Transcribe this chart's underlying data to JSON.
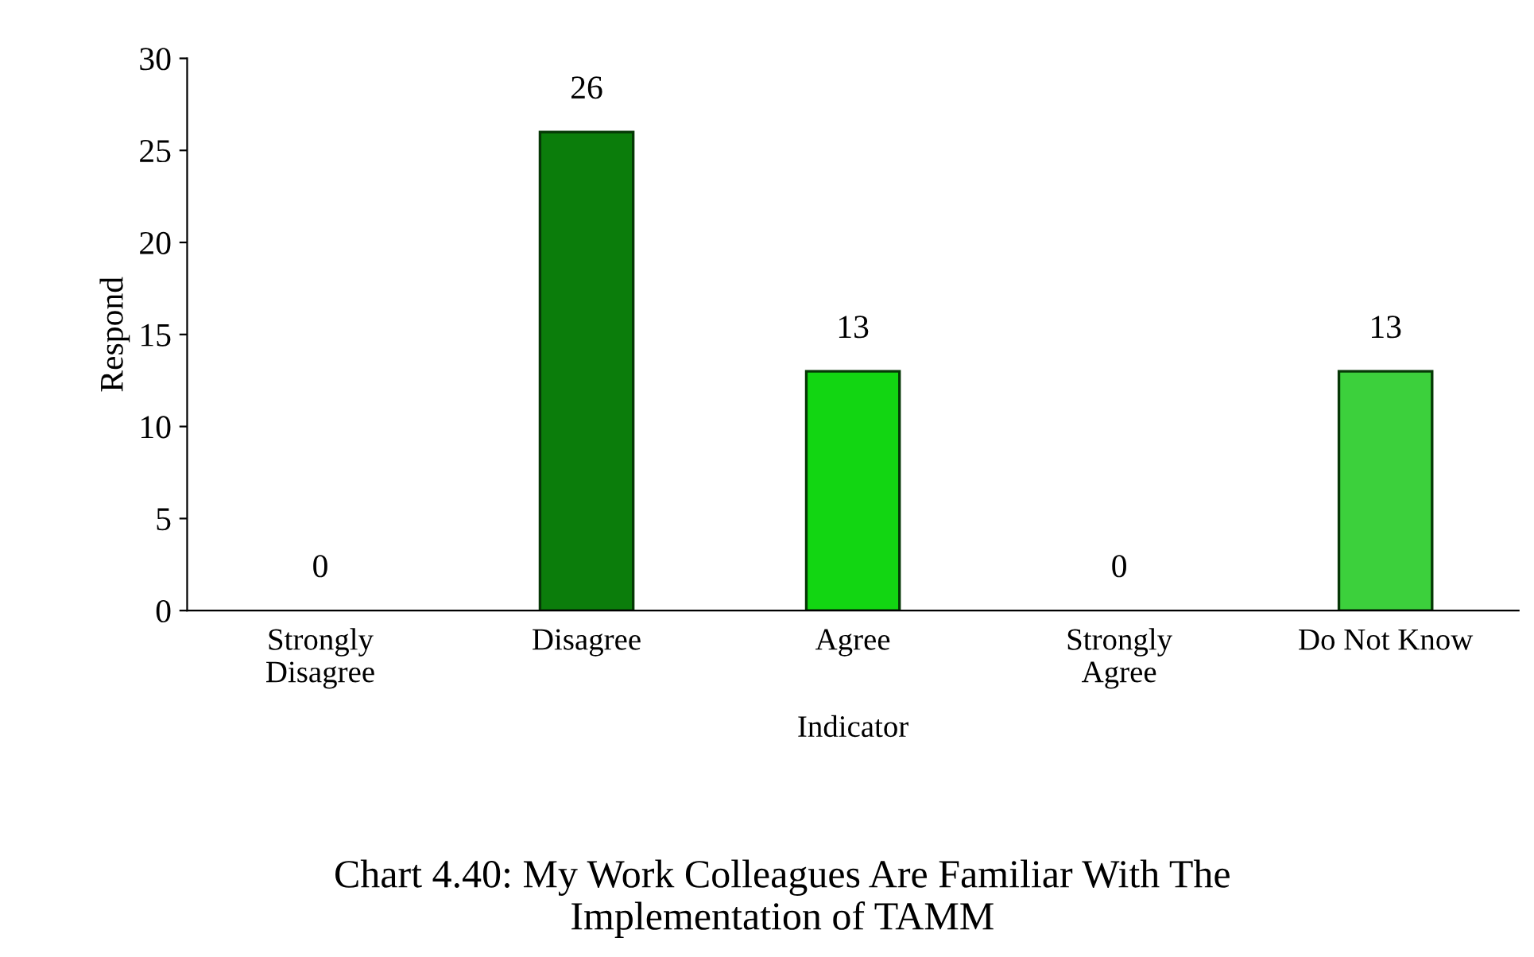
{
  "chart_data": {
    "type": "bar",
    "title": "Chart 4.40: My Work Colleagues Are Familiar With The\nImplementation of TAMM",
    "xlabel": "Indicator",
    "ylabel": "Respond",
    "categories": [
      "Strongly\nDisagree",
      "Disagree",
      "Agree",
      "Strongly\nAgree",
      "Do Not Know"
    ],
    "values": [
      0,
      26,
      13,
      0,
      13
    ],
    "colors": [
      null,
      "#0b7d0b",
      "#12d612",
      null,
      "#3cd03c"
    ],
    "ylim": [
      0,
      30
    ],
    "yticks": [
      0,
      5,
      10,
      15,
      20,
      25,
      30
    ],
    "data_labels": true,
    "grid": false,
    "legend": false
  }
}
